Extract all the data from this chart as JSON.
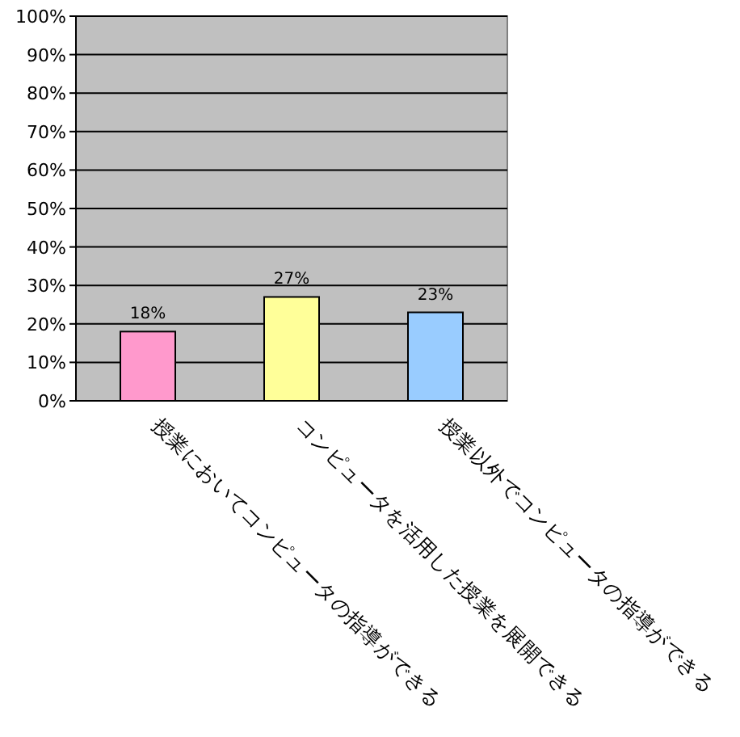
{
  "chart_data": {
    "type": "bar",
    "categories": [
      "授業においてコンピュータの指導ができる",
      "コンピュータを活用した授業を展開できる",
      "授業以外でコンピュータの指導ができる"
    ],
    "values": [
      18,
      27,
      23
    ],
    "colors": [
      "#ff99cc",
      "#ffff99",
      "#99ccff"
    ],
    "value_labels": [
      "18%",
      "27%",
      "23%"
    ],
    "ylim": [
      0,
      100
    ],
    "yticks": [
      {
        "value": 0,
        "label": "0%"
      },
      {
        "value": 10,
        "label": "10%"
      },
      {
        "value": 20,
        "label": "20%"
      },
      {
        "value": 30,
        "label": "30%"
      },
      {
        "value": 40,
        "label": "40%"
      },
      {
        "value": 50,
        "label": "50%"
      },
      {
        "value": 60,
        "label": "60%"
      },
      {
        "value": 70,
        "label": "70%"
      },
      {
        "value": 80,
        "label": "80%"
      },
      {
        "value": 90,
        "label": "90%"
      },
      {
        "value": 100,
        "label": "100%"
      }
    ],
    "grid": "y"
  }
}
